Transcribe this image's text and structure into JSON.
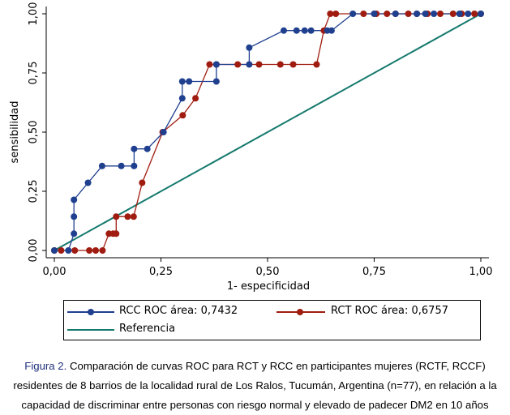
{
  "chart_data": {
    "type": "line",
    "xlabel": "1- especificidad",
    "ylabel": "sensibilidad",
    "xlim": [
      0,
      1
    ],
    "ylim": [
      0,
      1
    ],
    "xticks": [
      "0,00",
      "0,25",
      "0,50",
      "0,75",
      "1,00"
    ],
    "yticks": [
      "0,00",
      "0,25",
      "0,50",
      "0,75",
      "1,00"
    ],
    "grid": false,
    "legend_position": "bottom",
    "series": [
      {
        "name": "RCC ROC área: 0,7432",
        "color": "#1f3f8f",
        "marker": "circle",
        "x": [
          0,
          0.033,
          0.046,
          0.046,
          0.046,
          0.079,
          0.112,
          0.157,
          0.187,
          0.187,
          0.218,
          0.256,
          0.3,
          0.3,
          0.316,
          0.38,
          0.38,
          0.457,
          0.457,
          0.538,
          0.568,
          0.587,
          0.602,
          0.64,
          0.65,
          0.7,
          0.75,
          0.8,
          0.85,
          0.87,
          0.89,
          0.95,
          0.97,
          1
        ],
        "y": [
          0,
          0,
          0.071,
          0.143,
          0.214,
          0.286,
          0.357,
          0.357,
          0.357,
          0.429,
          0.429,
          0.5,
          0.643,
          0.714,
          0.714,
          0.714,
          0.786,
          0.786,
          0.857,
          0.929,
          0.929,
          0.929,
          0.929,
          0.929,
          0.929,
          1,
          1,
          1,
          1,
          1,
          1,
          1,
          1,
          1
        ]
      },
      {
        "name": "RCT ROC área: 0,6757",
        "color": "#a01c10",
        "marker": "circle",
        "x": [
          0,
          0.016,
          0.048,
          0.082,
          0.097,
          0.113,
          0.128,
          0.138,
          0.145,
          0.145,
          0.172,
          0.186,
          0.206,
          0.254,
          0.301,
          0.331,
          0.364,
          0.38,
          0.43,
          0.48,
          0.53,
          0.56,
          0.615,
          0.632,
          0.647,
          0.66,
          0.725,
          0.755,
          0.78,
          0.8,
          0.83,
          0.85,
          0.875,
          0.905,
          0.935,
          0.955,
          0.985,
          1
        ],
        "y": [
          0,
          0,
          0,
          0,
          0,
          0,
          0.071,
          0.071,
          0.071,
          0.143,
          0.143,
          0.143,
          0.286,
          0.5,
          0.571,
          0.643,
          0.786,
          0.786,
          0.786,
          0.786,
          0.786,
          0.786,
          0.786,
          0.929,
          1,
          1,
          1,
          1,
          1,
          1,
          1,
          1,
          1,
          1,
          1,
          1,
          1,
          1
        ]
      },
      {
        "name": "Referencia",
        "color": "#157a6e",
        "marker": "none",
        "x": [
          0,
          1
        ],
        "y": [
          0,
          1
        ]
      }
    ]
  },
  "legend": {
    "rcc_label": "RCC ROC área: 0,7432",
    "rct_label": "RCT ROC área: 0,6757",
    "ref_label": "Referencia"
  },
  "caption": {
    "label": "Figura 2.",
    "text": " Comparación de curvas ROC para RCT y RCC en participantes mujeres (RCTF, RCCF) residentes de 8 barrios de la localidad rural de Los Ralos, Tucumán, Argentina (n=77), en relación a la capacidad de discriminar entre personas con riesgo normal y elevado de padecer DM2 en 10 años"
  }
}
